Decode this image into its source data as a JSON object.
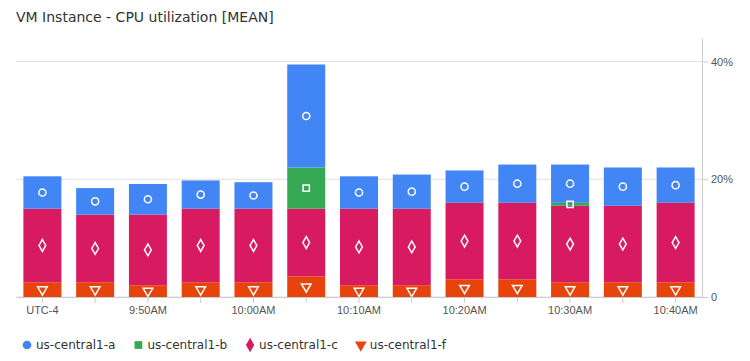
{
  "chart_data": {
    "type": "bar",
    "stacked": true,
    "title": "VM Instance - CPU utilization [MEAN]",
    "categories": [
      "UTC-4",
      null,
      "9:50AM",
      null,
      "10:00AM",
      null,
      "10:10AM",
      null,
      "10:20AM",
      null,
      "10:30AM",
      null,
      "10:40AM"
    ],
    "series": [
      {
        "name": "us-central1-a",
        "color": "#4285F4",
        "marker": "circle",
        "values": [
          5.5,
          4.5,
          5.2,
          4.8,
          4.5,
          17.5,
          5.5,
          5.8,
          5.5,
          6.5,
          6.5,
          6.5,
          6.0
        ]
      },
      {
        "name": "us-central1-b",
        "color": "#34A853",
        "marker": "square",
        "values": [
          0.0,
          0.0,
          0.0,
          0.0,
          0.0,
          7.0,
          0.0,
          0.0,
          0.0,
          0.0,
          0.5,
          0.0,
          0.0
        ]
      },
      {
        "name": "us-central1-c",
        "color": "#D81B60",
        "marker": "diamond",
        "values": [
          12.5,
          11.5,
          12.0,
          12.5,
          12.5,
          11.5,
          13.0,
          13.0,
          13.0,
          13.0,
          13.0,
          13.0,
          13.5
        ]
      },
      {
        "name": "us-central1-f",
        "color": "#E8430A",
        "marker": "triangle-down",
        "values": [
          2.5,
          2.5,
          2.0,
          2.5,
          2.5,
          3.5,
          2.0,
          2.0,
          3.0,
          3.0,
          2.5,
          2.5,
          2.5
        ]
      }
    ],
    "ylim": [
      0,
      44
    ],
    "yticks": [
      0,
      {
        "value": 20,
        "label": "20%"
      },
      {
        "value": 40,
        "label": "40%"
      }
    ],
    "grid": true,
    "legend": "bottom-left"
  }
}
